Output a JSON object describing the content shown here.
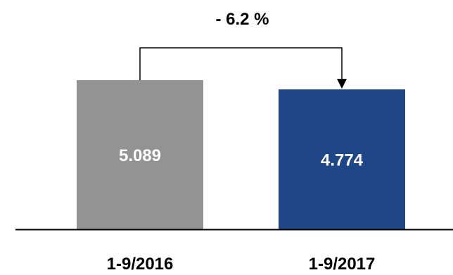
{
  "chart_data": {
    "type": "bar",
    "categories": [
      "1-9/2016",
      "1-9/2017"
    ],
    "values": [
      5.089,
      4.774
    ],
    "value_labels": [
      "5.089",
      "4.774"
    ],
    "bar_colors": [
      "#939393",
      "#1f4788"
    ],
    "label_color": "#ffffff",
    "text_color": "#000000",
    "annotation": {
      "text": "- 6.2 %",
      "from": "1-9/2016",
      "to": "1-9/2017"
    },
    "grid": false,
    "legend": "none"
  }
}
